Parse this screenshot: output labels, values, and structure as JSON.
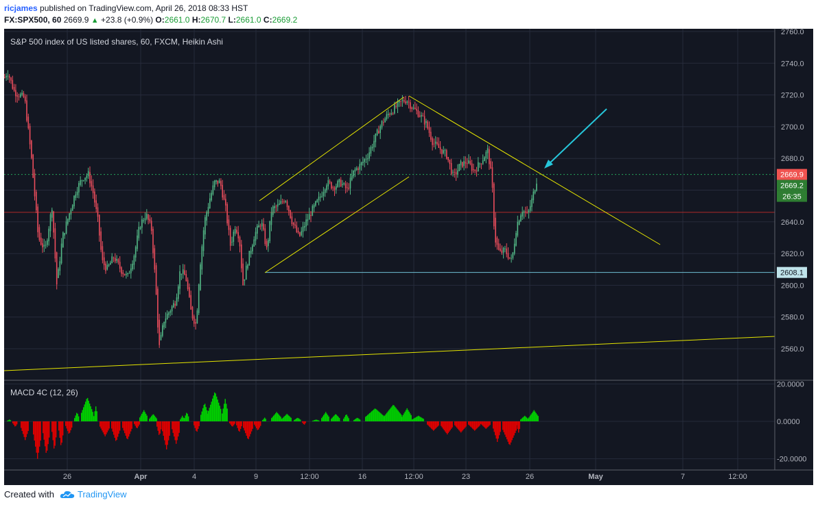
{
  "header": {
    "user": "ricjames",
    "published": "published on TradingView.com, April 26, 2018 08:33 HST",
    "symbol": "FX:SPX500, 60",
    "last": "2669.9",
    "change": "+23.8 (+0.9%)",
    "o_label": "O:",
    "o": "2661.0",
    "h_label": "H:",
    "h": "2670.7",
    "l_label": "L:",
    "l": "2661.0",
    "c_label": "C:",
    "c": "2669.2"
  },
  "footer": {
    "created_with": "Created with",
    "brand": "TradingView",
    "logo_icon": "tradingview-cloud-icon"
  },
  "colors": {
    "bg": "#131722",
    "up": "#53b987",
    "down": "#eb4d5c",
    "trend": "#e6e600",
    "arrow": "#26c6da",
    "support": "#70c1d4",
    "macd_up": "#00d000",
    "macd_down": "#e00000"
  },
  "chart_data": [
    {
      "type": "candlestick",
      "title": "S&P 500 index of US listed shares, 60, FXCM, Heikin Ashi",
      "ylim": [
        2545,
        2763
      ],
      "y_ticks": [
        "2760.0",
        "2740.0",
        "2720.0",
        "2700.0",
        "2680.0",
        "2660.0",
        "2640.0",
        "2620.0",
        "2600.0",
        "2580.0",
        "2560.0"
      ],
      "x_tick_labels": [
        "26",
        "Apr",
        "4",
        "9",
        "12:00",
        "16",
        "12:00",
        "23",
        "26",
        "May",
        "7",
        "12:00"
      ],
      "price_labels": {
        "last": "2669.9",
        "close": "2669.2",
        "countdown": "26:35",
        "support": "2608.1"
      },
      "levels": {
        "last": 2669.9,
        "red_line": 2646,
        "support": 2608.1
      },
      "path": [
        [
          0,
          2725
        ],
        [
          10,
          2735
        ],
        [
          20,
          2722
        ],
        [
          35,
          2718
        ],
        [
          45,
          2680
        ],
        [
          55,
          2630
        ],
        [
          65,
          2622
        ],
        [
          75,
          2650
        ],
        [
          82,
          2600
        ],
        [
          90,
          2630
        ],
        [
          100,
          2645
        ],
        [
          110,
          2660
        ],
        [
          120,
          2668
        ],
        [
          128,
          2670
        ],
        [
          135,
          2658
        ],
        [
          142,
          2640
        ],
        [
          148,
          2615
        ],
        [
          155,
          2610
        ],
        [
          165,
          2618
        ],
        [
          175,
          2610
        ],
        [
          185,
          2605
        ],
        [
          195,
          2620
        ],
        [
          203,
          2638
        ],
        [
          212,
          2645
        ],
        [
          220,
          2635
        ],
        [
          226,
          2600
        ],
        [
          231,
          2560
        ],
        [
          238,
          2578
        ],
        [
          245,
          2583
        ],
        [
          255,
          2590
        ],
        [
          262,
          2610
        ],
        [
          270,
          2605
        ],
        [
          278,
          2582
        ],
        [
          285,
          2575
        ],
        [
          290,
          2610
        ],
        [
          297,
          2640
        ],
        [
          305,
          2655
        ],
        [
          312,
          2665
        ],
        [
          320,
          2665
        ],
        [
          328,
          2648
        ],
        [
          335,
          2625
        ],
        [
          342,
          2638
        ],
        [
          348,
          2630
        ],
        [
          353,
          2600
        ],
        [
          360,
          2615
        ],
        [
          370,
          2632
        ],
        [
          380,
          2640
        ],
        [
          388,
          2622
        ],
        [
          395,
          2648
        ],
        [
          405,
          2650
        ],
        [
          415,
          2655
        ],
        [
          425,
          2640
        ],
        [
          435,
          2630
        ],
        [
          445,
          2640
        ],
        [
          455,
          2648
        ],
        [
          465,
          2655
        ],
        [
          475,
          2665
        ],
        [
          485,
          2662
        ],
        [
          495,
          2665
        ],
        [
          505,
          2660
        ],
        [
          515,
          2672
        ],
        [
          525,
          2676
        ],
        [
          535,
          2682
        ],
        [
          545,
          2692
        ],
        [
          555,
          2702
        ],
        [
          565,
          2708
        ],
        [
          575,
          2712
        ],
        [
          585,
          2716
        ],
        [
          592,
          2717
        ],
        [
          600,
          2712
        ],
        [
          610,
          2708
        ],
        [
          620,
          2702
        ],
        [
          630,
          2690
        ],
        [
          640,
          2686
        ],
        [
          650,
          2682
        ],
        [
          660,
          2668
        ],
        [
          670,
          2676
        ],
        [
          680,
          2678
        ],
        [
          690,
          2672
        ],
        [
          700,
          2678
        ],
        [
          710,
          2685
        ],
        [
          716,
          2666
        ],
        [
          720,
          2630
        ],
        [
          727,
          2620
        ],
        [
          735,
          2622
        ],
        [
          745,
          2615
        ],
        [
          752,
          2638
        ],
        [
          760,
          2648
        ],
        [
          768,
          2644
        ],
        [
          775,
          2655
        ],
        [
          782,
          2668
        ]
      ]
    },
    {
      "type": "bar",
      "title": "MACD 4C (12, 26)",
      "ylim": [
        -24,
        20
      ],
      "y_ticks": [
        "20.0000",
        "0.0000",
        "-20.0000"
      ],
      "segments": [
        [
          10,
          16,
          1
        ],
        [
          18,
          25,
          -3
        ],
        [
          30,
          42,
          -10
        ],
        [
          48,
          60,
          -20
        ],
        [
          62,
          72,
          -18
        ],
        [
          75,
          82,
          -16
        ],
        [
          85,
          92,
          -14
        ],
        [
          95,
          105,
          -7
        ],
        [
          108,
          115,
          5
        ],
        [
          118,
          135,
          13
        ],
        [
          136,
          142,
          8
        ],
        [
          145,
          160,
          -8
        ],
        [
          162,
          175,
          -11
        ],
        [
          178,
          192,
          -10
        ],
        [
          195,
          203,
          -4
        ],
        [
          203,
          215,
          6
        ],
        [
          217,
          228,
          4
        ],
        [
          228,
          235,
          -8
        ],
        [
          236,
          248,
          -15
        ],
        [
          250,
          262,
          -12
        ],
        [
          262,
          268,
          3
        ],
        [
          268,
          275,
          5
        ],
        [
          282,
          290,
          -6
        ],
        [
          292,
          303,
          10
        ],
        [
          303,
          322,
          16
        ],
        [
          323,
          332,
          12
        ],
        [
          334,
          342,
          -3
        ],
        [
          344,
          352,
          -6
        ],
        [
          354,
          368,
          -10
        ],
        [
          370,
          380,
          -5
        ],
        [
          382,
          388,
          2
        ],
        [
          395,
          410,
          5
        ],
        [
          410,
          425,
          4
        ],
        [
          428,
          438,
          2
        ],
        [
          440,
          445,
          -2
        ],
        [
          455,
          465,
          1
        ],
        [
          468,
          480,
          5
        ],
        [
          482,
          495,
          4
        ],
        [
          500,
          508,
          4
        ],
        [
          515,
          525,
          2
        ],
        [
          532,
          560,
          7
        ],
        [
          560,
          585,
          9
        ],
        [
          585,
          600,
          7
        ],
        [
          600,
          618,
          3
        ],
        [
          622,
          640,
          -5
        ],
        [
          642,
          660,
          -7
        ],
        [
          662,
          680,
          -6
        ],
        [
          682,
          700,
          -5
        ],
        [
          700,
          715,
          -4
        ],
        [
          718,
          730,
          -11
        ],
        [
          732,
          752,
          -13
        ],
        [
          752,
          758,
          -6
        ],
        [
          758,
          770,
          3
        ],
        [
          770,
          785,
          6
        ]
      ]
    }
  ]
}
